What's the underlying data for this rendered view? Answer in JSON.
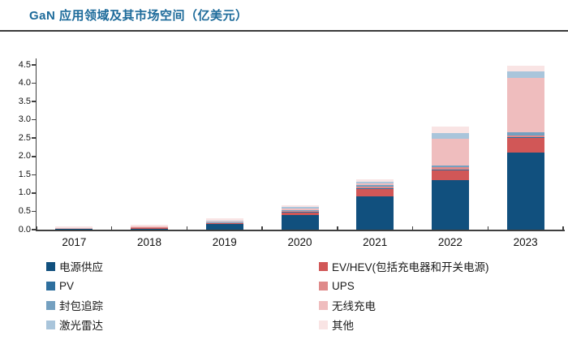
{
  "header": {
    "title": "GaN 应用领域及其市场空间（亿美元）"
  },
  "chart_data": {
    "type": "bar",
    "stacked": true,
    "title": "GaN 应用领域及其市场空间（亿美元）",
    "xlabel": "",
    "ylabel": "",
    "ylim": [
      0,
      4.5
    ],
    "ytick_step": 0.5,
    "grid": false,
    "legend_position": "bottom",
    "categories": [
      "2017",
      "2018",
      "2019",
      "2020",
      "2021",
      "2022",
      "2023"
    ],
    "yticks_top_to_bottom": [
      "4.5",
      "4.0",
      "3.5",
      "3.0",
      "2.5",
      "2.0",
      "1.5",
      "1.0",
      "0.5",
      "0.0"
    ],
    "series": [
      {
        "id": "power-supply",
        "name": "电源供应",
        "color": "#11507e",
        "values": [
          0.03,
          0.04,
          0.15,
          0.4,
          0.9,
          1.35,
          2.1
        ]
      },
      {
        "id": "ev-hev",
        "name": "EV/HEV(包括充电器和开关电源)",
        "color": "#d15757",
        "values": [
          0.01,
          0.01,
          0.03,
          0.07,
          0.2,
          0.28,
          0.4
        ]
      },
      {
        "id": "pv",
        "name": "PV",
        "color": "#2e6f9e",
        "values": [
          0.0,
          0.0,
          0.01,
          0.01,
          0.02,
          0.02,
          0.03
        ]
      },
      {
        "id": "ups",
        "name": "UPS",
        "color": "#df8a8a",
        "values": [
          0.0,
          0.01,
          0.01,
          0.03,
          0.06,
          0.06,
          0.05
        ]
      },
      {
        "id": "envelope-tracking",
        "name": "封包追踪",
        "color": "#74a0c0",
        "values": [
          0.0,
          0.0,
          0.01,
          0.03,
          0.04,
          0.05,
          0.07
        ]
      },
      {
        "id": "wireless-charging",
        "name": "无线充电",
        "color": "#efbdbe",
        "values": [
          0.01,
          0.02,
          0.03,
          0.04,
          0.04,
          0.72,
          1.5
        ]
      },
      {
        "id": "lidar",
        "name": "激光雷达",
        "color": "#a9c5db",
        "values": [
          0.0,
          0.0,
          0.01,
          0.04,
          0.05,
          0.15,
          0.18
        ]
      },
      {
        "id": "others",
        "name": "其他",
        "color": "#f9e4e4",
        "values": [
          0.04,
          0.06,
          0.06,
          0.05,
          0.06,
          0.18,
          0.15
        ]
      }
    ]
  },
  "legend": {
    "left_column": [
      {
        "id": "power-supply",
        "label": "电源供应",
        "color": "#11507e"
      },
      {
        "id": "pv",
        "label": "PV",
        "color": "#2e6f9e"
      },
      {
        "id": "envelope-tracking",
        "label": "封包追踪",
        "color": "#74a0c0"
      },
      {
        "id": "lidar",
        "label": "激光雷达",
        "color": "#a9c5db"
      }
    ],
    "right_column": [
      {
        "id": "ev-hev",
        "label": "EV/HEV(包括充电器和开关电源)",
        "color": "#d15757"
      },
      {
        "id": "ups",
        "label": "UPS",
        "color": "#df8a8a"
      },
      {
        "id": "wireless-charging",
        "label": "无线充电",
        "color": "#efbdbe"
      },
      {
        "id": "others",
        "label": "其他",
        "color": "#f9e4e4"
      }
    ]
  }
}
